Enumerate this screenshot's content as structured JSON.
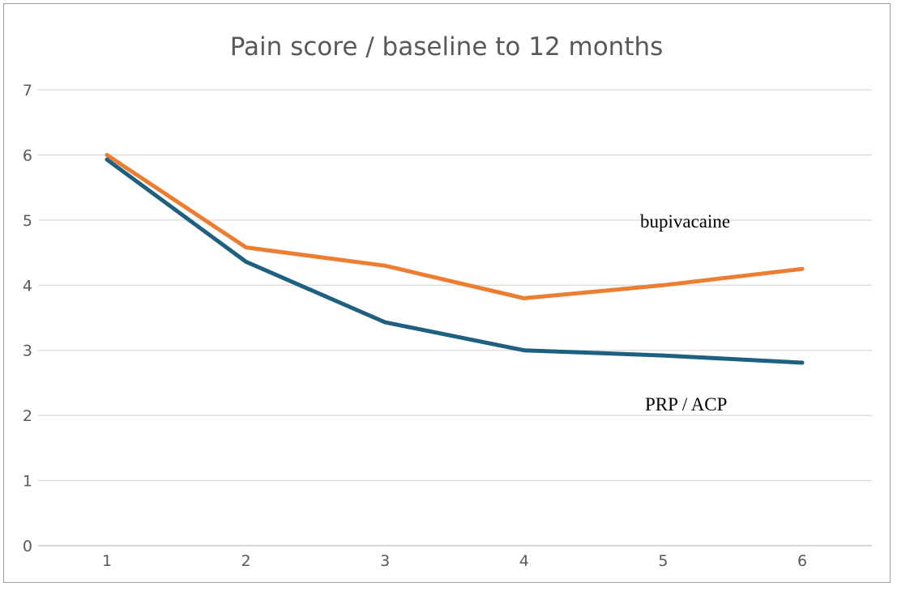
{
  "chart_data": {
    "type": "line",
    "title": "Pain score / baseline to 12 months",
    "categories": [
      "1",
      "2",
      "3",
      "4",
      "5",
      "6"
    ],
    "ylim": [
      0,
      7
    ],
    "yticks": [
      "0",
      "1",
      "2",
      "3",
      "4",
      "5",
      "6",
      "7"
    ],
    "grid": true,
    "legend": "none",
    "series": [
      {
        "name": "bupivacaine",
        "color": "#ED7D31",
        "values": [
          6.0,
          4.58,
          4.3,
          3.8,
          4.0,
          4.25
        ]
      },
      {
        "name": "PRP / ACP",
        "color": "#1F5F7F",
        "values": [
          5.93,
          4.36,
          3.43,
          3.0,
          2.92,
          2.81
        ]
      }
    ],
    "annotations": [
      "bupivacaine",
      "PRP / ACP"
    ]
  }
}
